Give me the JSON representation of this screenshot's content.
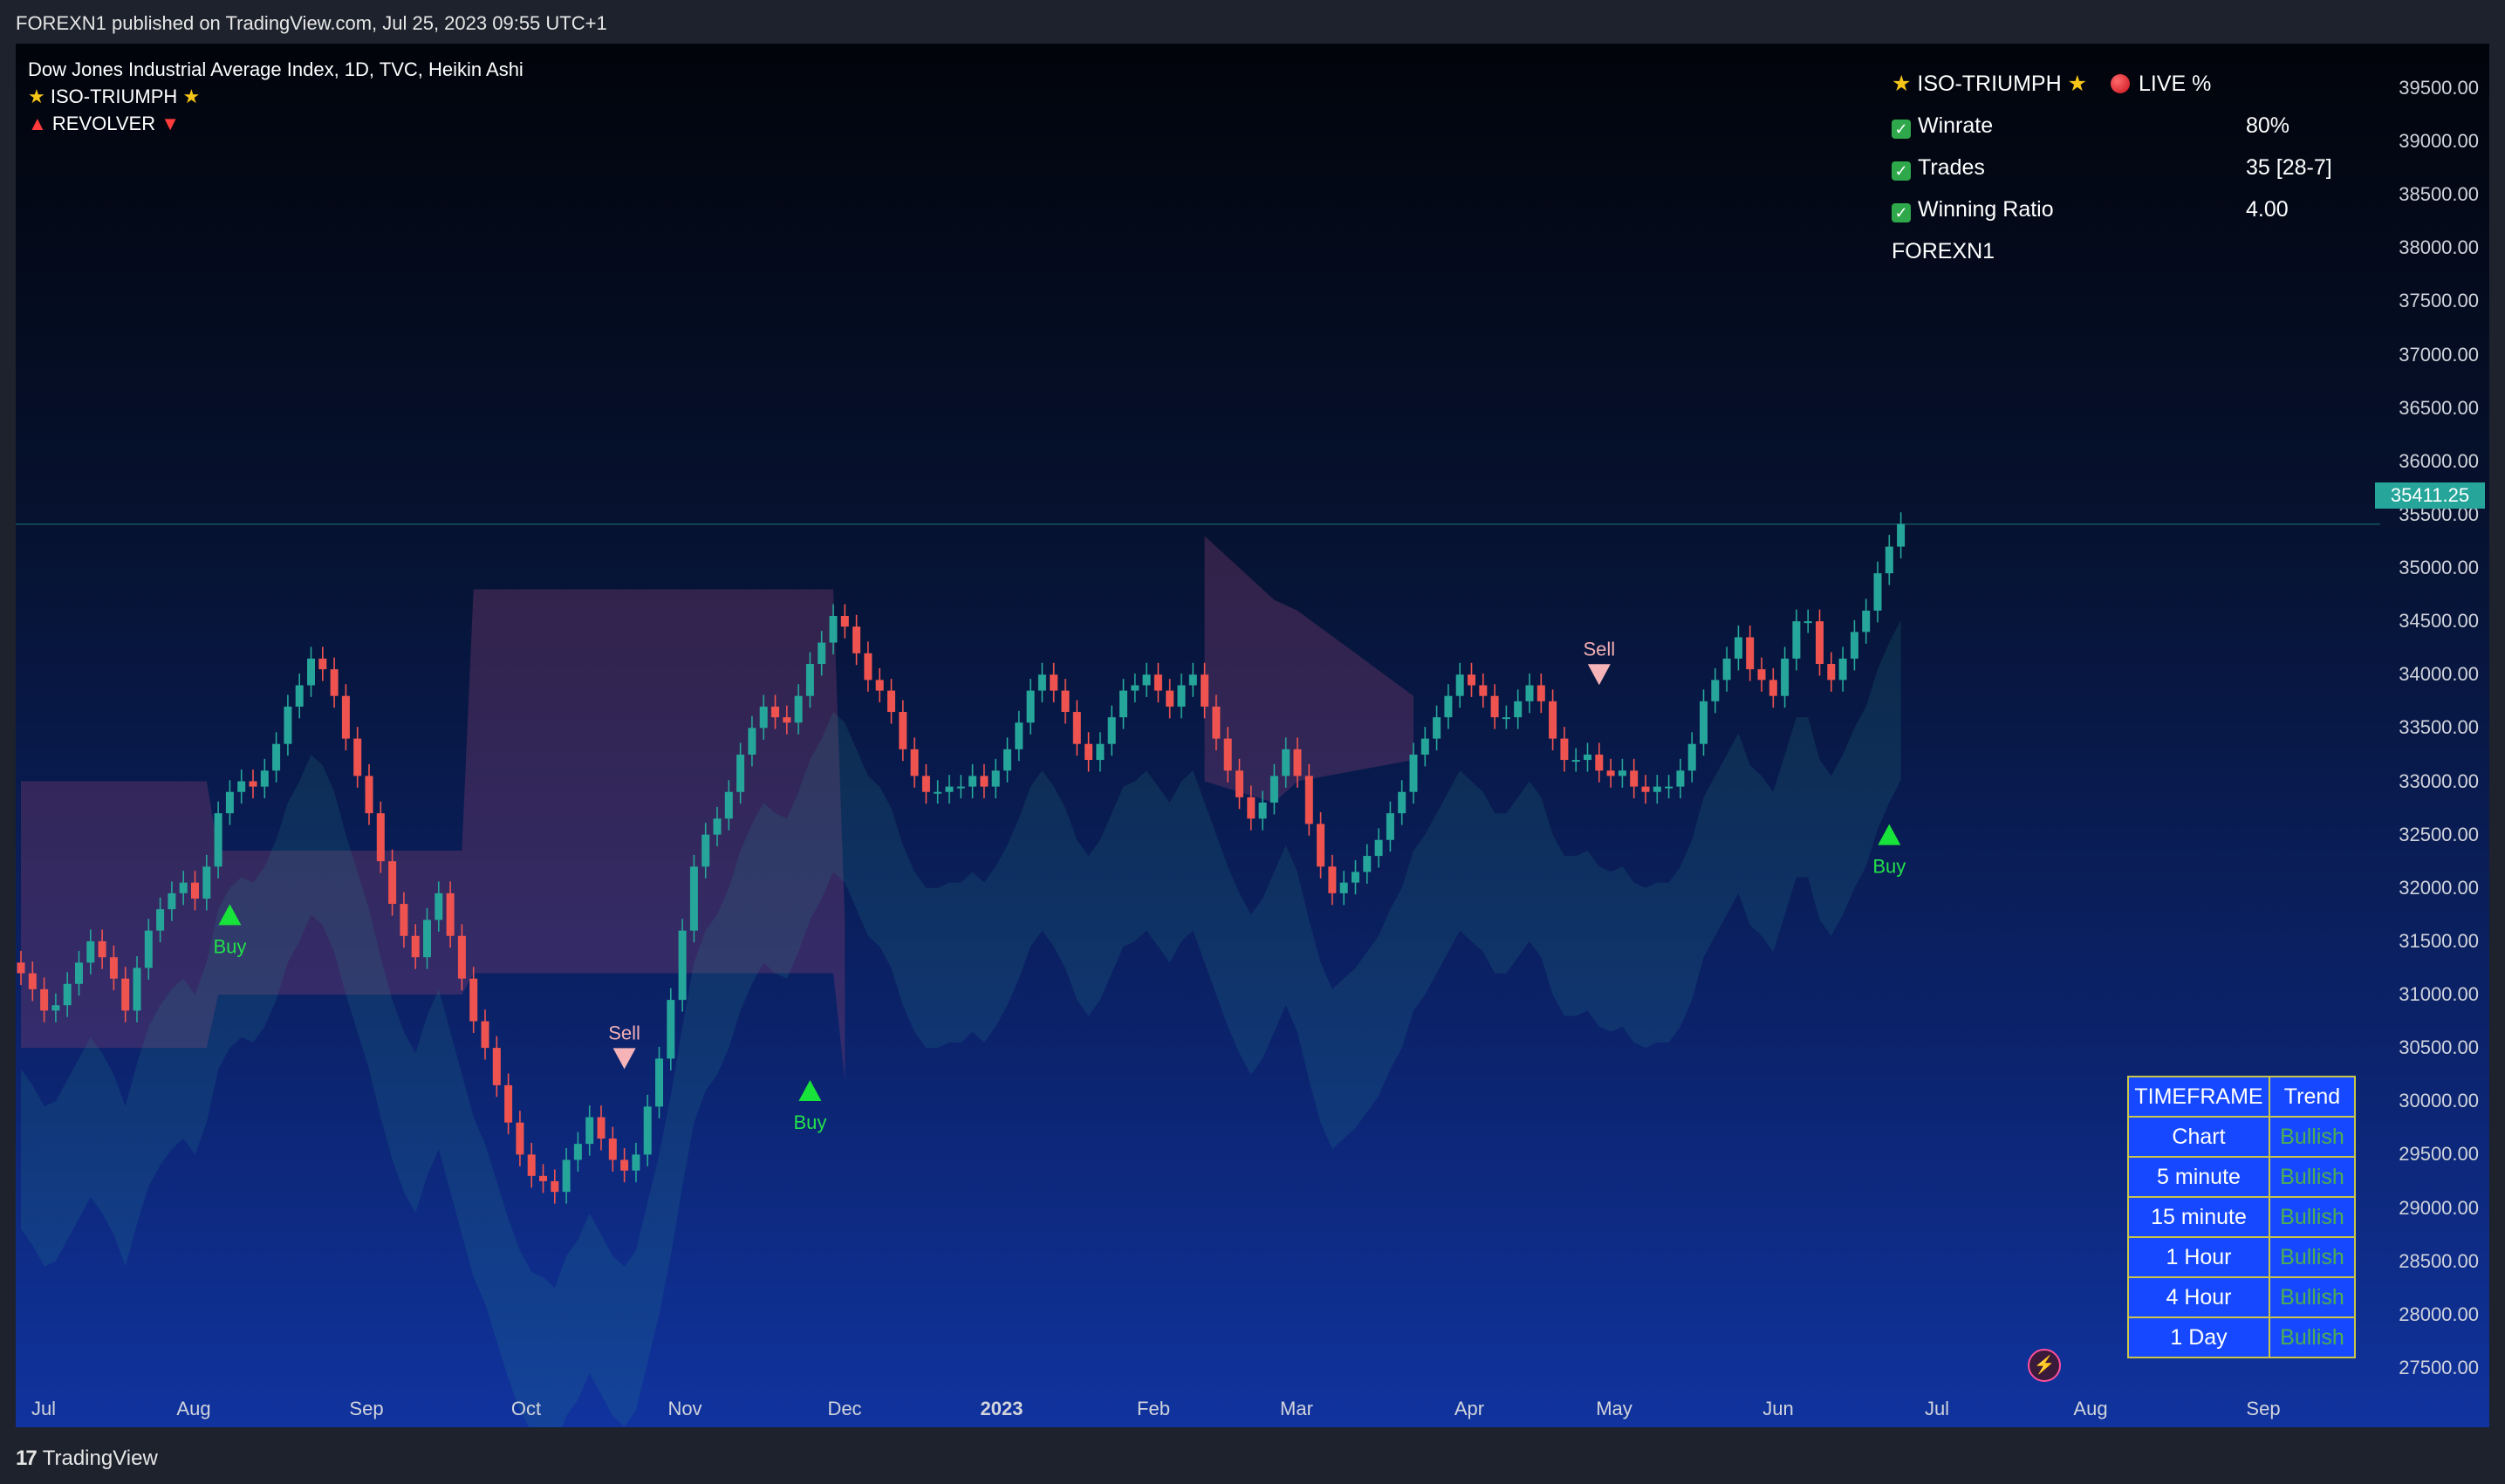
{
  "header": {
    "publish_line": "FOREXN1 published on TradingView.com, Jul 25, 2023 09:55 UTC+1"
  },
  "legend": {
    "symbol_line": "Dow Jones Industrial Average Index, 1D, TVC, Heikin Ashi",
    "indicator1": "ISO-TRIUMPH",
    "indicator2": "REVOLVER"
  },
  "stats_panel": {
    "title": "ISO-TRIUMPH",
    "live_label": "LIVE %",
    "rows": [
      {
        "label": "Winrate",
        "value": "80%"
      },
      {
        "label": "Trades",
        "value": "35 [28-7]"
      },
      {
        "label": "Winning Ratio",
        "value": "4.00"
      }
    ],
    "author": "FOREXN1"
  },
  "timeframe_table": {
    "headers": [
      "TIMEFRAME",
      "Trend"
    ],
    "rows": [
      {
        "tf": "Chart",
        "trend": "Bullish"
      },
      {
        "tf": "5 minute",
        "trend": "Bullish"
      },
      {
        "tf": "15 minute",
        "trend": "Bullish"
      },
      {
        "tf": "1 Hour",
        "trend": "Bullish"
      },
      {
        "tf": "4 Hour",
        "trend": "Bullish"
      },
      {
        "tf": "1 Day",
        "trend": "Bullish"
      }
    ]
  },
  "footer": {
    "brand": "TradingView"
  },
  "chart_data": {
    "type": "candlestick",
    "style": "Heikin Ashi",
    "timeframe": "1D",
    "y_axis": {
      "ticks": [
        39500,
        39000,
        38500,
        38000,
        37500,
        37000,
        36500,
        36000,
        35500,
        35000,
        34500,
        34000,
        33500,
        33000,
        32500,
        32000,
        31500,
        31000,
        30500,
        30000,
        29500,
        29000,
        28500,
        28000,
        27500
      ],
      "range": [
        27000,
        39700
      ]
    },
    "x_axis": {
      "ticks": [
        "Jul",
        "Aug",
        "Sep",
        "Oct",
        "Nov",
        "Dec",
        "2023",
        "Feb",
        "Mar",
        "Apr",
        "May",
        "Jun",
        "Jul",
        "Aug",
        "Sep"
      ],
      "bold_tick": "2023"
    },
    "last_price": "35411.25",
    "last_price_value": 35411.25,
    "closes": [
      31200,
      31050,
      30850,
      30900,
      31100,
      31300,
      31500,
      31350,
      31150,
      30850,
      31250,
      31600,
      31800,
      31950,
      32050,
      31900,
      32200,
      32700,
      32900,
      33000,
      32950,
      33100,
      33350,
      33700,
      33900,
      34150,
      34050,
      33800,
      33400,
      33050,
      32700,
      32250,
      31850,
      31550,
      31350,
      31700,
      31950,
      31550,
      31150,
      30750,
      30500,
      30150,
      29800,
      29500,
      29300,
      29250,
      29150,
      29450,
      29600,
      29850,
      29650,
      29450,
      29350,
      29500,
      29950,
      30400,
      30950,
      31600,
      32200,
      32500,
      32650,
      32900,
      33250,
      33500,
      33700,
      33600,
      33550,
      33800,
      34100,
      34300,
      34550,
      34450,
      34200,
      33950,
      33850,
      33650,
      33300,
      33050,
      32900,
      32900,
      32950,
      32950,
      33050,
      32950,
      33100,
      33300,
      33550,
      33850,
      34000,
      33850,
      33650,
      33350,
      33200,
      33350,
      33600,
      33850,
      33900,
      34000,
      33850,
      33700,
      33900,
      34000,
      33700,
      33400,
      33100,
      32850,
      32650,
      32800,
      33050,
      33300,
      33050,
      32600,
      32200,
      31950,
      32050,
      32150,
      32300,
      32450,
      32700,
      32900,
      33250,
      33400,
      33600,
      33800,
      34000,
      33900,
      33800,
      33600,
      33600,
      33750,
      33900,
      33750,
      33400,
      33200,
      33200,
      33250,
      33100,
      33050,
      33100,
      32950,
      32900,
      32950,
      32950,
      33100,
      33350,
      33750,
      33950,
      34150,
      34350,
      34050,
      33950,
      33800,
      34150,
      34500,
      34500,
      34100,
      33950,
      34150,
      34400,
      34600,
      34950,
      35200,
      35411.25
    ],
    "cloud_bands": [
      {
        "trend": "bearish",
        "x": [
          0,
          16,
          17,
          38,
          39,
          70,
          71
        ],
        "upper": [
          33000,
          33000,
          32350,
          32350,
          34800,
          34800,
          31700
        ],
        "lower": [
          30500,
          30500,
          31000,
          31000,
          31200,
          31200,
          30200
        ]
      },
      {
        "trend": "bearish",
        "x": [
          102,
          108,
          110,
          120
        ],
        "upper": [
          35300,
          34700,
          34600,
          33800
        ],
        "lower": [
          33000,
          32800,
          33000,
          33200
        ]
      }
    ],
    "signals": [
      {
        "type": "Buy",
        "index": 18,
        "price": 31750
      },
      {
        "type": "Sell",
        "index": 52,
        "price": 30400
      },
      {
        "type": "Buy",
        "index": 68,
        "price": 30100
      },
      {
        "type": "Sell",
        "index": 136,
        "price": 34000
      },
      {
        "type": "Buy",
        "index": 161,
        "price": 32500
      }
    ]
  }
}
